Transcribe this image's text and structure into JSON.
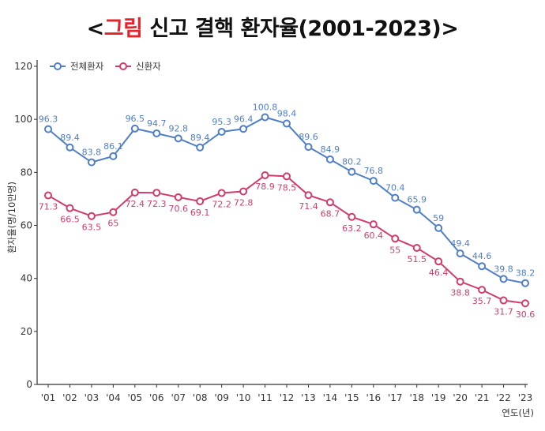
{
  "title": {
    "open": "<",
    "highlight": "그림",
    "rest": " 신고 결핵 환자율(2001-2023)",
    "close": ">"
  },
  "chart_data": {
    "type": "line",
    "categories": [
      "'01",
      "'02",
      "'03",
      "'04",
      "'05",
      "'06",
      "'07",
      "'08",
      "'09",
      "'10",
      "'11",
      "'12",
      "'13",
      "'14",
      "'15",
      "'16",
      "'17",
      "'18",
      "'19",
      "'20",
      "'21",
      "'22",
      "'23"
    ],
    "series": [
      {
        "name": "전체환자",
        "color": "#4f7fc7",
        "values": [
          96.3,
          89.4,
          83.8,
          86.1,
          96.5,
          94.7,
          92.8,
          89.4,
          95.3,
          96.4,
          100.8,
          98.4,
          89.6,
          84.9,
          80.2,
          76.8,
          70.4,
          65.9,
          59,
          49.4,
          44.6,
          39.8,
          38.2
        ]
      },
      {
        "name": "신환자",
        "color": "#d13b6e",
        "values": [
          71.3,
          66.5,
          63.5,
          65,
          72.4,
          72.3,
          70.6,
          69.1,
          72.2,
          72.8,
          78.9,
          78.5,
          71.4,
          68.7,
          63.2,
          60.4,
          55,
          51.5,
          46.4,
          38.8,
          35.7,
          31.7,
          30.6
        ]
      }
    ],
    "ylabel": "환자율(명/10만명)",
    "xlabel": "연도(년)",
    "ylim": [
      0,
      120
    ],
    "yticks": [
      0,
      20,
      40,
      60,
      80,
      100,
      120
    ],
    "grid": false,
    "legend": "top-left"
  }
}
